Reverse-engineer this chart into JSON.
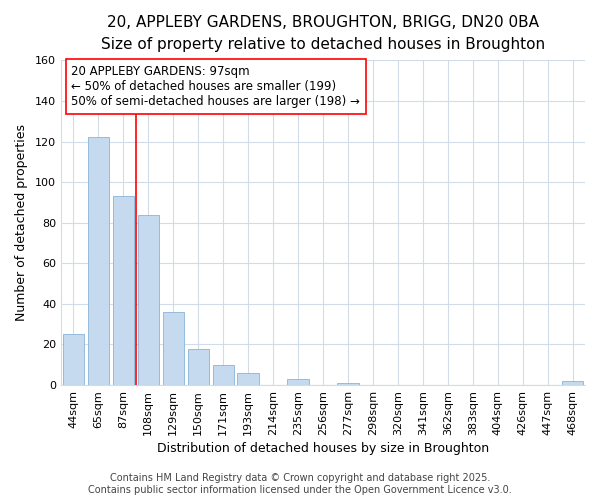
{
  "title_line1": "20, APPLEBY GARDENS, BROUGHTON, BRIGG, DN20 0BA",
  "title_line2": "Size of property relative to detached houses in Broughton",
  "xlabel": "Distribution of detached houses by size in Broughton",
  "ylabel": "Number of detached properties",
  "categories": [
    "44sqm",
    "65sqm",
    "87sqm",
    "108sqm",
    "129sqm",
    "150sqm",
    "171sqm",
    "193sqm",
    "214sqm",
    "235sqm",
    "256sqm",
    "277sqm",
    "298sqm",
    "320sqm",
    "341sqm",
    "362sqm",
    "383sqm",
    "404sqm",
    "426sqm",
    "447sqm",
    "468sqm"
  ],
  "values": [
    25,
    122,
    93,
    84,
    36,
    18,
    10,
    6,
    0,
    3,
    0,
    1,
    0,
    0,
    0,
    0,
    0,
    0,
    0,
    0,
    2
  ],
  "bar_color": "#c5d9ef",
  "bar_edge_color": "#8ab4d8",
  "ylim": [
    0,
    160
  ],
  "yticks": [
    0,
    20,
    40,
    60,
    80,
    100,
    120,
    140,
    160
  ],
  "annotation_box_text": "20 APPLEBY GARDENS: 97sqm\n← 50% of detached houses are smaller (199)\n50% of semi-detached houses are larger (198) →",
  "redline_x": 2.5,
  "footer_line1": "Contains HM Land Registry data © Crown copyright and database right 2025.",
  "footer_line2": "Contains public sector information licensed under the Open Government Licence v3.0.",
  "background_color": "#ffffff",
  "plot_background_color": "#ffffff",
  "grid_color": "#d0dce8",
  "title_fontsize": 11,
  "subtitle_fontsize": 9.5,
  "axis_label_fontsize": 9,
  "tick_fontsize": 8,
  "annotation_fontsize": 8.5,
  "footer_fontsize": 7
}
